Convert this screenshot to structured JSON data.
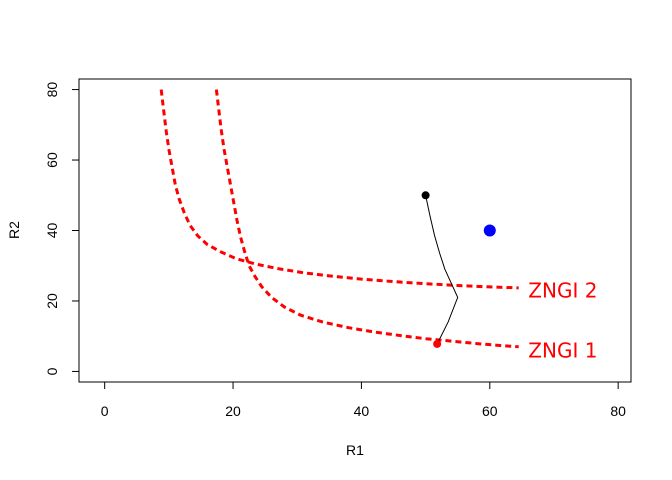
{
  "chart_data": {
    "type": "line",
    "xlabel": "R1",
    "ylabel": "R2",
    "xlim": [
      -4,
      82
    ],
    "ylim": [
      -3,
      83
    ],
    "x_ticks": [
      "0",
      "20",
      "40",
      "60",
      "80"
    ],
    "y_ticks": [
      "0",
      "20",
      "40",
      "60",
      "80"
    ],
    "grid": false,
    "legend": "none",
    "colors": {
      "zngi": "#ff0000",
      "trajectory": "#000000",
      "supply_point": "#0000ff",
      "end_point": "#ff0000"
    },
    "zngi_curves": [
      {
        "label": "ZNGI 1",
        "color": "#ff0000",
        "line_style": "dashed",
        "points": [
          [
            17.4,
            80
          ],
          [
            17.8,
            74
          ],
          [
            18.2,
            68
          ],
          [
            18.6,
            63
          ],
          [
            19.1,
            58
          ],
          [
            19.6,
            53
          ],
          [
            20.1,
            48
          ],
          [
            20.6,
            43
          ],
          [
            21.2,
            38
          ],
          [
            21.8,
            34
          ],
          [
            22.5,
            30
          ],
          [
            23.4,
            27
          ],
          [
            24.5,
            24
          ],
          [
            26,
            21
          ],
          [
            28,
            18.3
          ],
          [
            30.5,
            16
          ],
          [
            34,
            14
          ],
          [
            38,
            12.4
          ],
          [
            42,
            11.2
          ],
          [
            46,
            10.2
          ],
          [
            50,
            9.3
          ],
          [
            54,
            8.6
          ],
          [
            58,
            7.9
          ],
          [
            62,
            7.3
          ],
          [
            64.5,
            7
          ]
        ]
      },
      {
        "label": "ZNGI 2",
        "color": "#ff0000",
        "line_style": "dashed",
        "points": [
          [
            8.8,
            80
          ],
          [
            9.2,
            74
          ],
          [
            9.6,
            68
          ],
          [
            10,
            63
          ],
          [
            10.5,
            58
          ],
          [
            11,
            53
          ],
          [
            11.6,
            49
          ],
          [
            12.4,
            45
          ],
          [
            13.3,
            41.5
          ],
          [
            14.5,
            38.5
          ],
          [
            16,
            36
          ],
          [
            18,
            34
          ],
          [
            20.5,
            32
          ],
          [
            23.5,
            30.5
          ],
          [
            27,
            29.2
          ],
          [
            31,
            28
          ],
          [
            35,
            27.1
          ],
          [
            40,
            26.2
          ],
          [
            45,
            25.5
          ],
          [
            50,
            24.9
          ],
          [
            55,
            24.4
          ],
          [
            60,
            24
          ],
          [
            64.5,
            23.7
          ]
        ]
      }
    ],
    "trajectory": {
      "color": "#000000",
      "points": [
        [
          50,
          50
        ],
        [
          50.7,
          44
        ],
        [
          51.4,
          38.5
        ],
        [
          52.2,
          33.5
        ],
        [
          53,
          29
        ],
        [
          54,
          25
        ],
        [
          55,
          21
        ],
        [
          53.5,
          14
        ],
        [
          51.8,
          7.8
        ]
      ]
    },
    "start_point": {
      "x": 50,
      "y": 50,
      "color": "#000000"
    },
    "end_point": {
      "x": 51.8,
      "y": 7.8,
      "color": "#ff0000"
    },
    "supply_point": {
      "x": 60,
      "y": 40,
      "color": "#0000ff"
    },
    "annotations": [
      {
        "text": "ZNGI 2",
        "x": 66,
        "y": 23,
        "color": "#ff0000"
      },
      {
        "text": "ZNGI 1",
        "x": 66,
        "y": 6,
        "color": "#ff0000"
      }
    ]
  }
}
